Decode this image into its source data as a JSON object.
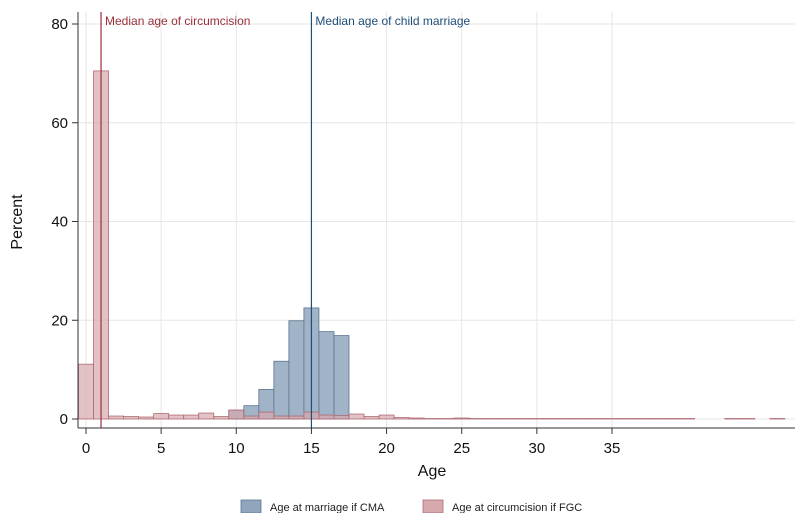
{
  "chart_data": {
    "type": "bar",
    "title": "",
    "xlabel": "Age",
    "ylabel": "Percent",
    "xlim": [
      -0.5,
      47
    ],
    "ylim": [
      0,
      80
    ],
    "xticks": [
      0,
      5,
      10,
      15,
      20,
      25,
      30,
      35
    ],
    "yticks": [
      0,
      20,
      40,
      60,
      80
    ],
    "grid": true,
    "legend_position": "bottom",
    "bin_width": 1,
    "series": [
      {
        "name": "Age at marriage if CMA",
        "color": "#8fa6bd",
        "edge_color": "#5b7690",
        "x": [
          10,
          11,
          12,
          13,
          14,
          15,
          16,
          17
        ],
        "values": [
          1.8,
          2.7,
          6.0,
          11.7,
          19.9,
          22.5,
          17.7,
          16.9
        ]
      },
      {
        "name": "Age at circumcision if FGC",
        "color": "#d7a8ae",
        "edge_color": "#b06b75",
        "x": [
          0,
          1,
          2,
          3,
          4,
          5,
          6,
          7,
          8,
          9,
          10,
          11,
          12,
          13,
          14,
          15,
          16,
          17,
          18,
          19,
          20,
          21,
          22,
          23,
          24,
          25,
          26,
          27,
          28,
          29,
          30,
          31,
          32,
          33,
          34,
          35,
          36,
          37,
          38,
          39,
          40,
          41,
          42,
          43,
          44,
          45,
          46
        ],
        "values": [
          11.1,
          70.5,
          0.6,
          0.5,
          0.4,
          1.1,
          0.8,
          0.8,
          1.2,
          0.5,
          1.8,
          0.6,
          1.4,
          0.6,
          0.6,
          1.4,
          0.8,
          0.7,
          1.0,
          0.5,
          0.8,
          0.3,
          0.2,
          0.1,
          0.1,
          0.2,
          0.1,
          0.1,
          0.1,
          0.1,
          0.1,
          0.1,
          0.1,
          0.1,
          0.1,
          0.1,
          0.1,
          0.1,
          0.1,
          0.1,
          0.1,
          0.0,
          0.0,
          0.1,
          0.1,
          0.0,
          0.1
        ]
      }
    ],
    "reference_lines": [
      {
        "x": 1,
        "label": "Median age of circumcision",
        "color": "#9b2f3a"
      },
      {
        "x": 15,
        "label": "Median age of child marriage",
        "color": "#1f4e79"
      }
    ]
  }
}
